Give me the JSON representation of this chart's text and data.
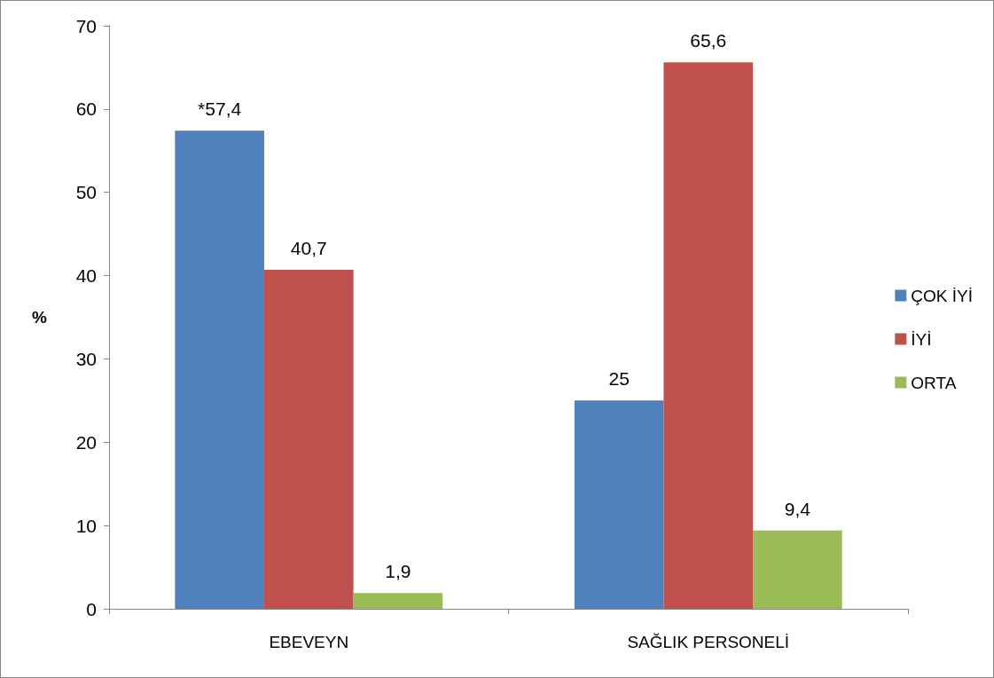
{
  "chart_data": {
    "type": "bar",
    "ylabel": "%",
    "categories": [
      "EBEVEYN",
      "SAĞLIK PERSONELİ"
    ],
    "series": [
      {
        "name": "ÇOK İYİ",
        "color": "#4f81bd",
        "values": [
          57.4,
          25
        ],
        "value_labels": [
          "*57,4",
          "25"
        ]
      },
      {
        "name": "İYİ",
        "color": "#c0504d",
        "values": [
          40.7,
          65.6
        ],
        "value_labels": [
          "40,7",
          "65,6"
        ]
      },
      {
        "name": "ORTA",
        "color": "#9bbb59",
        "values": [
          1.9,
          9.4
        ],
        "value_labels": [
          "1,9",
          "9,4"
        ]
      }
    ],
    "ylim": [
      0,
      70
    ],
    "yticks": [
      0,
      10,
      20,
      30,
      40,
      50,
      60,
      70
    ],
    "grid": false,
    "legend": "right"
  }
}
